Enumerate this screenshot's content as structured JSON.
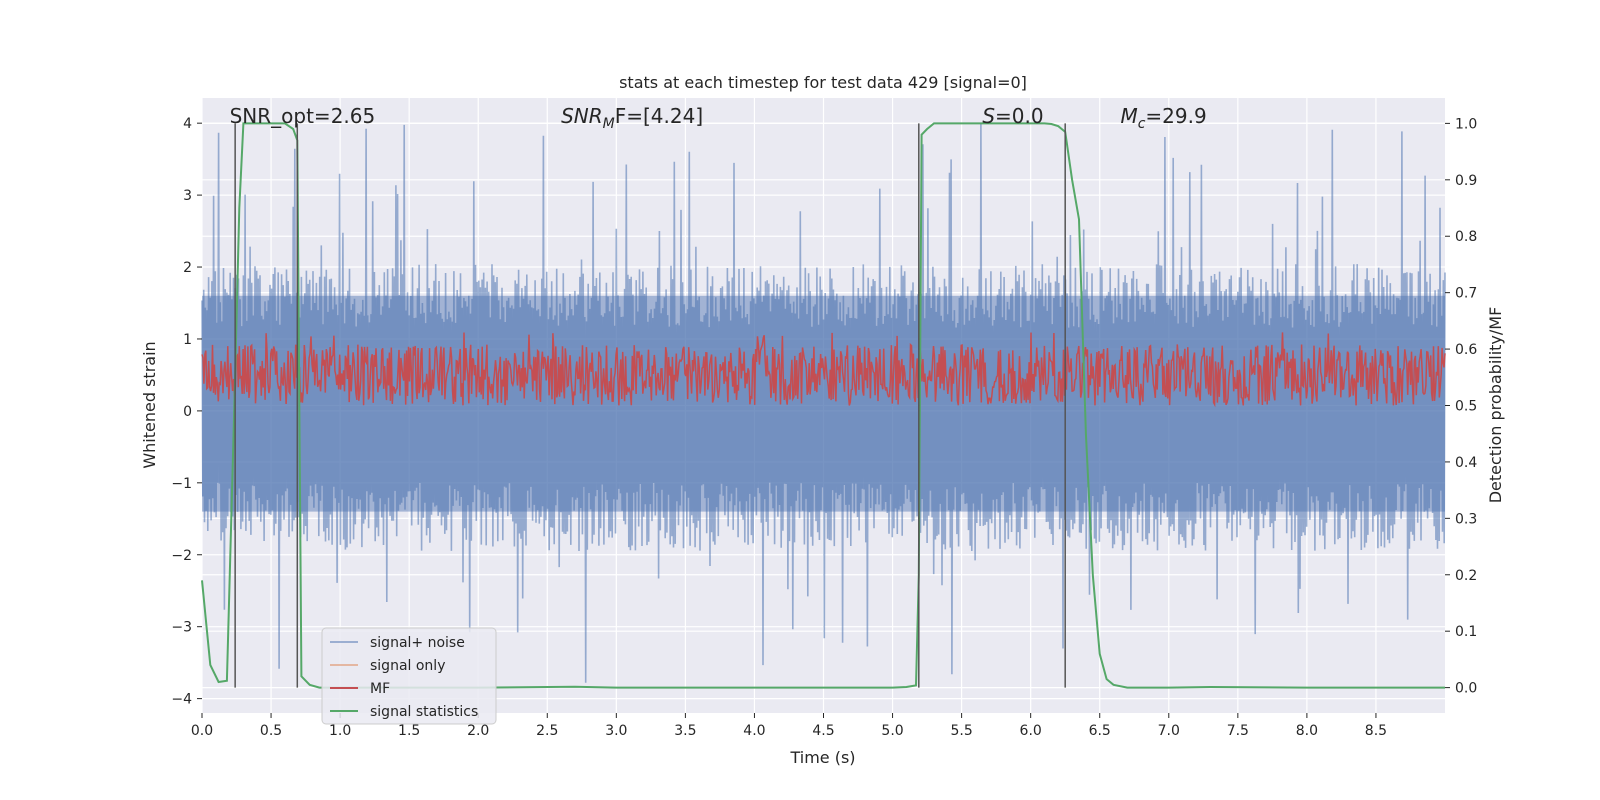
{
  "chart_data": {
    "type": "line",
    "title": "stats at each timestep for test data 429 [signal=0]",
    "xlabel": "Time (s)",
    "ylabel_left": "Whitened strain",
    "ylabel_right": "Detection probability/MF",
    "xlim": [
      0.0,
      9.0
    ],
    "ylim_left": [
      -4.2,
      4.35
    ],
    "ylim_right": [
      -0.045,
      1.045
    ],
    "x_ticks": [
      "0.0",
      "0.5",
      "1.0",
      "1.5",
      "2.0",
      "2.5",
      "3.0",
      "3.5",
      "4.0",
      "4.5",
      "5.0",
      "5.5",
      "6.0",
      "6.5",
      "7.0",
      "7.5",
      "8.0",
      "8.5"
    ],
    "y_ticks_left": [
      "4",
      "3",
      "2",
      "1",
      "0",
      "−1",
      "−2",
      "−3",
      "−4"
    ],
    "y_ticks_right": [
      "1.0",
      "0.9",
      "0.8",
      "0.7",
      "0.6",
      "0.5",
      "0.4",
      "0.3",
      "0.2",
      "0.1",
      "0.0"
    ],
    "annotations": [
      {
        "label": "SNR_opt=2.65",
        "x": 0.2
      },
      {
        "label": "SNR",
        "sub": "M",
        "suffix": "F=[4.24]",
        "x": 2.6
      },
      {
        "label": "S",
        "suffix": "=0.0",
        "x": 5.65
      },
      {
        "label": "M",
        "sub": "c",
        "suffix": "=29.9",
        "x": 6.65
      }
    ],
    "vertical_lines_x": [
      0.24,
      0.69,
      5.19,
      6.25
    ],
    "series": [
      {
        "name": "signal+ noise",
        "color": "#4c72b0",
        "alpha": 0.5,
        "axis": "left",
        "envelope": {
          "typical_max": 2.1,
          "peak_max": 4.0,
          "typical_min": -2.0,
          "peak_min": -3.8
        }
      },
      {
        "name": "signal only",
        "color": "#dd8452",
        "alpha": 0.5,
        "axis": "left",
        "values": []
      },
      {
        "name": "MF",
        "color": "#c44e52",
        "axis": "right",
        "range": [
          0.5,
          0.61
        ],
        "peaks": [
          0.62,
          0.63
        ]
      },
      {
        "name": "signal statistics",
        "color": "#55a868",
        "axis": "right",
        "x": [
          0.0,
          0.06,
          0.12,
          0.18,
          0.24,
          0.27,
          0.3,
          0.33,
          0.4,
          0.5,
          0.6,
          0.66,
          0.69,
          0.72,
          0.78,
          0.85,
          1.0,
          2.0,
          2.7,
          3.0,
          4.0,
          5.0,
          5.1,
          5.17,
          5.19,
          5.21,
          5.25,
          5.3,
          5.5,
          6.0,
          6.1,
          6.15,
          6.2,
          6.25,
          6.3,
          6.35,
          6.4,
          6.45,
          6.5,
          6.55,
          6.6,
          6.7,
          7.0,
          7.3,
          8.0,
          9.0
        ],
        "y": [
          0.19,
          0.04,
          0.01,
          0.012,
          0.55,
          0.85,
          1.0,
          1.0,
          1.0,
          1.0,
          1.0,
          0.99,
          0.97,
          0.02,
          0.005,
          0.0,
          0.0,
          0.0,
          0.0015,
          0.0,
          0.0,
          0.0,
          0.001,
          0.004,
          0.2,
          0.98,
          0.99,
          1.0,
          1.0,
          1.0,
          1.0,
          0.999,
          0.995,
          0.985,
          0.9,
          0.83,
          0.45,
          0.2,
          0.06,
          0.015,
          0.005,
          0.0,
          0.0,
          0.001,
          0.0,
          0.0
        ]
      }
    ],
    "legend_position": "lower-left"
  }
}
